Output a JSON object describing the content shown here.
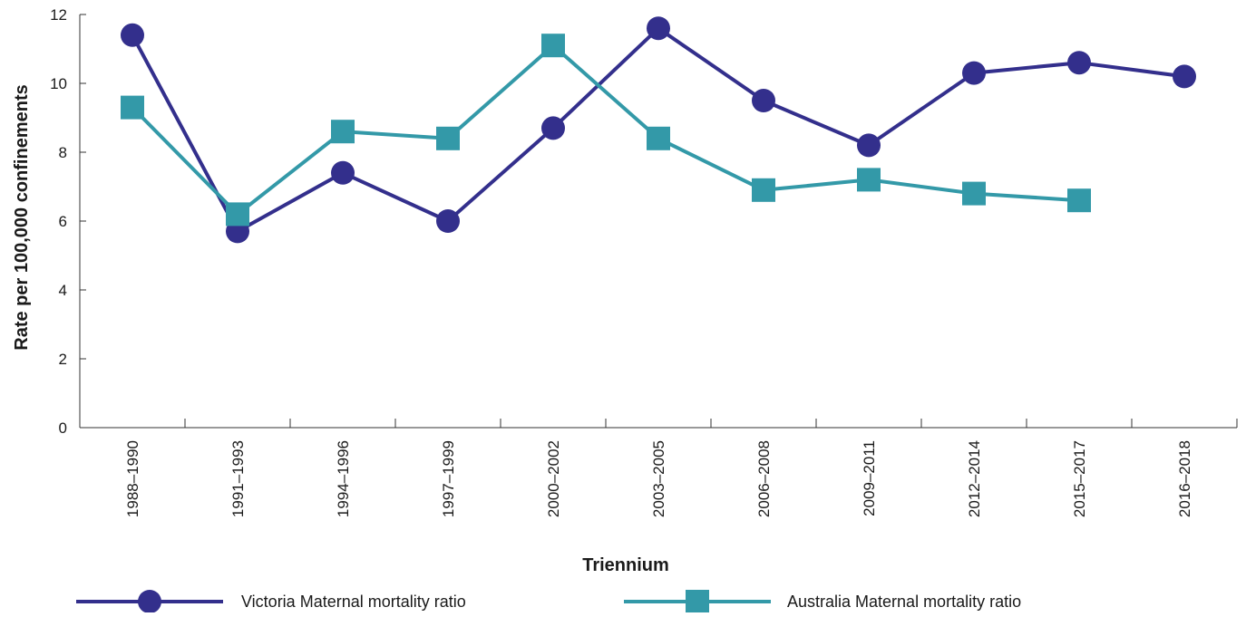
{
  "chart_data": {
    "type": "line",
    "title": "",
    "xlabel": "Triennium",
    "ylabel": "Rate per 100,000 confinements",
    "ylim": [
      0,
      12
    ],
    "yticks": [
      0,
      2,
      4,
      6,
      8,
      10,
      12
    ],
    "grid": false,
    "legend_position": "bottom",
    "categories": [
      "1988–1990",
      "1991–1993",
      "1994–1996",
      "1997–1999",
      "2000–2002",
      "2003–2005",
      "2006–2008",
      "2009–2011",
      "2012–2014",
      "2015–2017",
      "2016–2018"
    ],
    "series": [
      {
        "name": "Victoria Maternal mortality ratio",
        "color": "#332f8c",
        "marker": "circle",
        "values": [
          11.4,
          5.7,
          7.4,
          6.0,
          8.7,
          11.6,
          9.5,
          8.2,
          10.3,
          10.6,
          10.2
        ]
      },
      {
        "name": "Australia Maternal mortality ratio",
        "color": "#3399a8",
        "marker": "square",
        "values": [
          9.3,
          6.2,
          8.6,
          8.4,
          11.1,
          8.4,
          6.9,
          7.2,
          6.8,
          6.6,
          null
        ]
      }
    ]
  }
}
